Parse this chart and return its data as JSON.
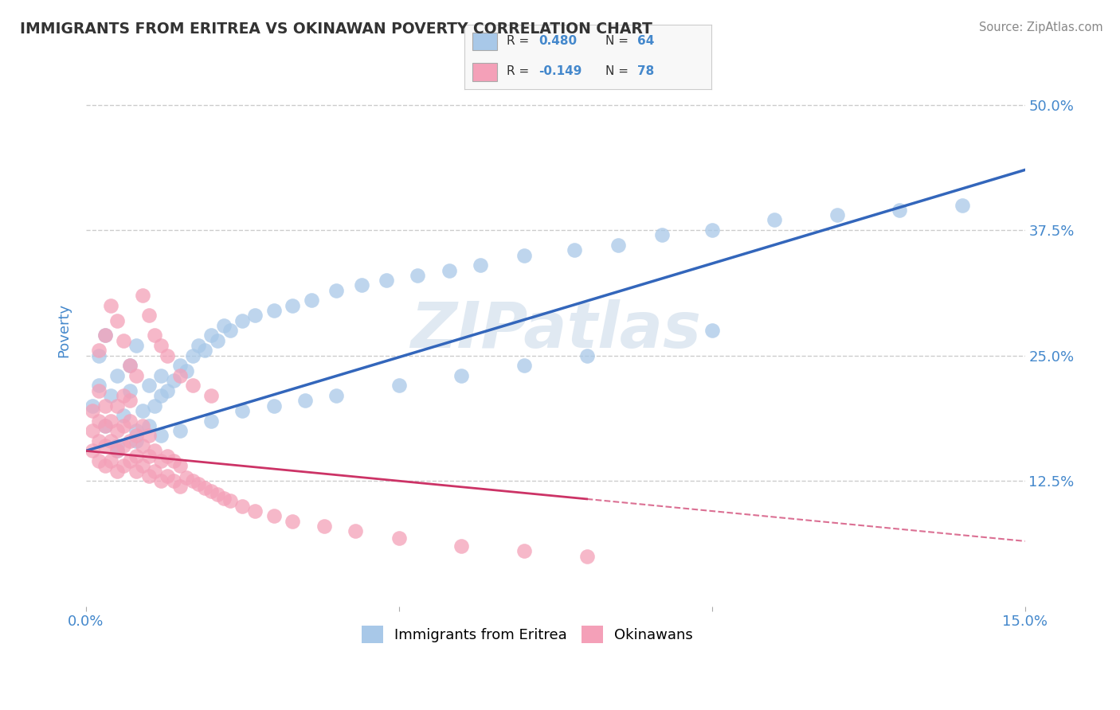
{
  "title": "IMMIGRANTS FROM ERITREA VS OKINAWAN POVERTY CORRELATION CHART",
  "source": "Source: ZipAtlas.com",
  "ylabel": "Poverty",
  "xlim": [
    0.0,
    0.15
  ],
  "ylim": [
    0.0,
    0.55
  ],
  "xticks": [
    0.0,
    0.05,
    0.1,
    0.15
  ],
  "xticklabels": [
    "0.0%",
    "",
    "",
    "15.0%"
  ],
  "yticks": [
    0.125,
    0.25,
    0.375,
    0.5
  ],
  "yticklabels": [
    "12.5%",
    "25.0%",
    "37.5%",
    "50.0%"
  ],
  "blue_color": "#A8C8E8",
  "pink_color": "#F4A0B8",
  "blue_line_color": "#3366BB",
  "pink_line_color": "#CC3366",
  "legend_label1": "Immigrants from Eritrea",
  "legend_label2": "Okinawans",
  "watermark": "ZIPatlas",
  "blue_line_x0": 0.0,
  "blue_line_y0": 0.155,
  "blue_line_x1": 0.15,
  "blue_line_y1": 0.435,
  "pink_line_x0": 0.0,
  "pink_line_y0": 0.155,
  "pink_line_x1": 0.15,
  "pink_line_y1": 0.065,
  "pink_line_solid_end": 0.08,
  "blue_scatter_x": [
    0.001,
    0.002,
    0.002,
    0.003,
    0.003,
    0.004,
    0.005,
    0.005,
    0.006,
    0.007,
    0.007,
    0.008,
    0.008,
    0.009,
    0.01,
    0.01,
    0.011,
    0.012,
    0.012,
    0.013,
    0.014,
    0.015,
    0.016,
    0.017,
    0.018,
    0.019,
    0.02,
    0.021,
    0.022,
    0.023,
    0.025,
    0.027,
    0.03,
    0.033,
    0.036,
    0.04,
    0.044,
    0.048,
    0.053,
    0.058,
    0.063,
    0.07,
    0.078,
    0.085,
    0.092,
    0.1,
    0.11,
    0.12,
    0.13,
    0.14,
    0.005,
    0.008,
    0.012,
    0.015,
    0.02,
    0.025,
    0.03,
    0.035,
    0.04,
    0.05,
    0.06,
    0.07,
    0.08,
    0.1
  ],
  "blue_scatter_y": [
    0.2,
    0.22,
    0.25,
    0.18,
    0.27,
    0.21,
    0.16,
    0.23,
    0.19,
    0.215,
    0.24,
    0.175,
    0.26,
    0.195,
    0.18,
    0.22,
    0.2,
    0.21,
    0.23,
    0.215,
    0.225,
    0.24,
    0.235,
    0.25,
    0.26,
    0.255,
    0.27,
    0.265,
    0.28,
    0.275,
    0.285,
    0.29,
    0.295,
    0.3,
    0.305,
    0.315,
    0.32,
    0.325,
    0.33,
    0.335,
    0.34,
    0.35,
    0.355,
    0.36,
    0.37,
    0.375,
    0.385,
    0.39,
    0.395,
    0.4,
    0.155,
    0.165,
    0.17,
    0.175,
    0.185,
    0.195,
    0.2,
    0.205,
    0.21,
    0.22,
    0.23,
    0.24,
    0.25,
    0.275
  ],
  "pink_scatter_x": [
    0.001,
    0.001,
    0.001,
    0.002,
    0.002,
    0.002,
    0.002,
    0.003,
    0.003,
    0.003,
    0.003,
    0.004,
    0.004,
    0.004,
    0.005,
    0.005,
    0.005,
    0.005,
    0.006,
    0.006,
    0.006,
    0.006,
    0.007,
    0.007,
    0.007,
    0.007,
    0.008,
    0.008,
    0.008,
    0.009,
    0.009,
    0.009,
    0.01,
    0.01,
    0.01,
    0.011,
    0.011,
    0.012,
    0.012,
    0.013,
    0.013,
    0.014,
    0.014,
    0.015,
    0.015,
    0.016,
    0.017,
    0.018,
    0.019,
    0.02,
    0.021,
    0.022,
    0.023,
    0.025,
    0.027,
    0.03,
    0.033,
    0.038,
    0.043,
    0.05,
    0.06,
    0.07,
    0.08,
    0.002,
    0.003,
    0.004,
    0.005,
    0.006,
    0.007,
    0.008,
    0.009,
    0.01,
    0.011,
    0.012,
    0.013,
    0.015,
    0.017,
    0.02
  ],
  "pink_scatter_y": [
    0.155,
    0.175,
    0.195,
    0.145,
    0.165,
    0.185,
    0.215,
    0.14,
    0.16,
    0.18,
    0.2,
    0.145,
    0.165,
    0.185,
    0.135,
    0.155,
    0.175,
    0.2,
    0.14,
    0.16,
    0.18,
    0.21,
    0.145,
    0.165,
    0.185,
    0.205,
    0.135,
    0.15,
    0.17,
    0.14,
    0.16,
    0.18,
    0.13,
    0.15,
    0.17,
    0.135,
    0.155,
    0.125,
    0.145,
    0.13,
    0.15,
    0.125,
    0.145,
    0.12,
    0.14,
    0.128,
    0.125,
    0.122,
    0.118,
    0.115,
    0.112,
    0.108,
    0.105,
    0.1,
    0.095,
    0.09,
    0.085,
    0.08,
    0.075,
    0.068,
    0.06,
    0.055,
    0.05,
    0.255,
    0.27,
    0.3,
    0.285,
    0.265,
    0.24,
    0.23,
    0.31,
    0.29,
    0.27,
    0.26,
    0.25,
    0.23,
    0.22,
    0.21
  ],
  "background_color": "#FFFFFF",
  "grid_color": "#CCCCCC",
  "title_color": "#333333",
  "tick_label_color": "#4488CC"
}
